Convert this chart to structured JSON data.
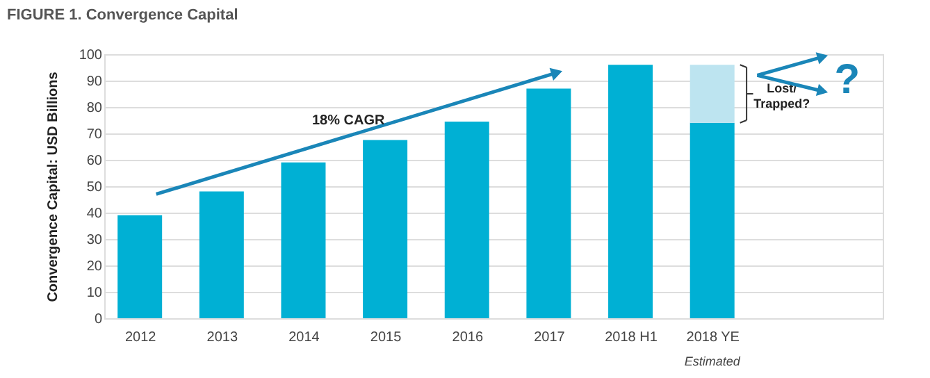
{
  "chart_data": {
    "type": "bar",
    "title": "FIGURE 1. Convergence Capital",
    "ylabel": "Convergence Capital: USD Billions",
    "categories": [
      "2012",
      "2013",
      "2014",
      "2015",
      "2016",
      "2017",
      "2018 H1",
      "2018 YE"
    ],
    "stacked": true,
    "series": [
      {
        "color": "#00b0d4",
        "values": [
          39,
          48,
          59,
          67.5,
          74.5,
          87,
          96,
          74
        ]
      },
      {
        "color": "#bde4f0",
        "values": [
          null,
          null,
          null,
          null,
          null,
          null,
          null,
          22
        ]
      }
    ],
    "ylim": [
      0,
      100
    ],
    "yticks": [
      0,
      10,
      20,
      30,
      40,
      50,
      60,
      70,
      80,
      90,
      100
    ],
    "grid": "y",
    "legend": false,
    "annotations": [
      "18% CAGR",
      "Lost/ Trapped?",
      "Estimated",
      "?"
    ]
  }
}
